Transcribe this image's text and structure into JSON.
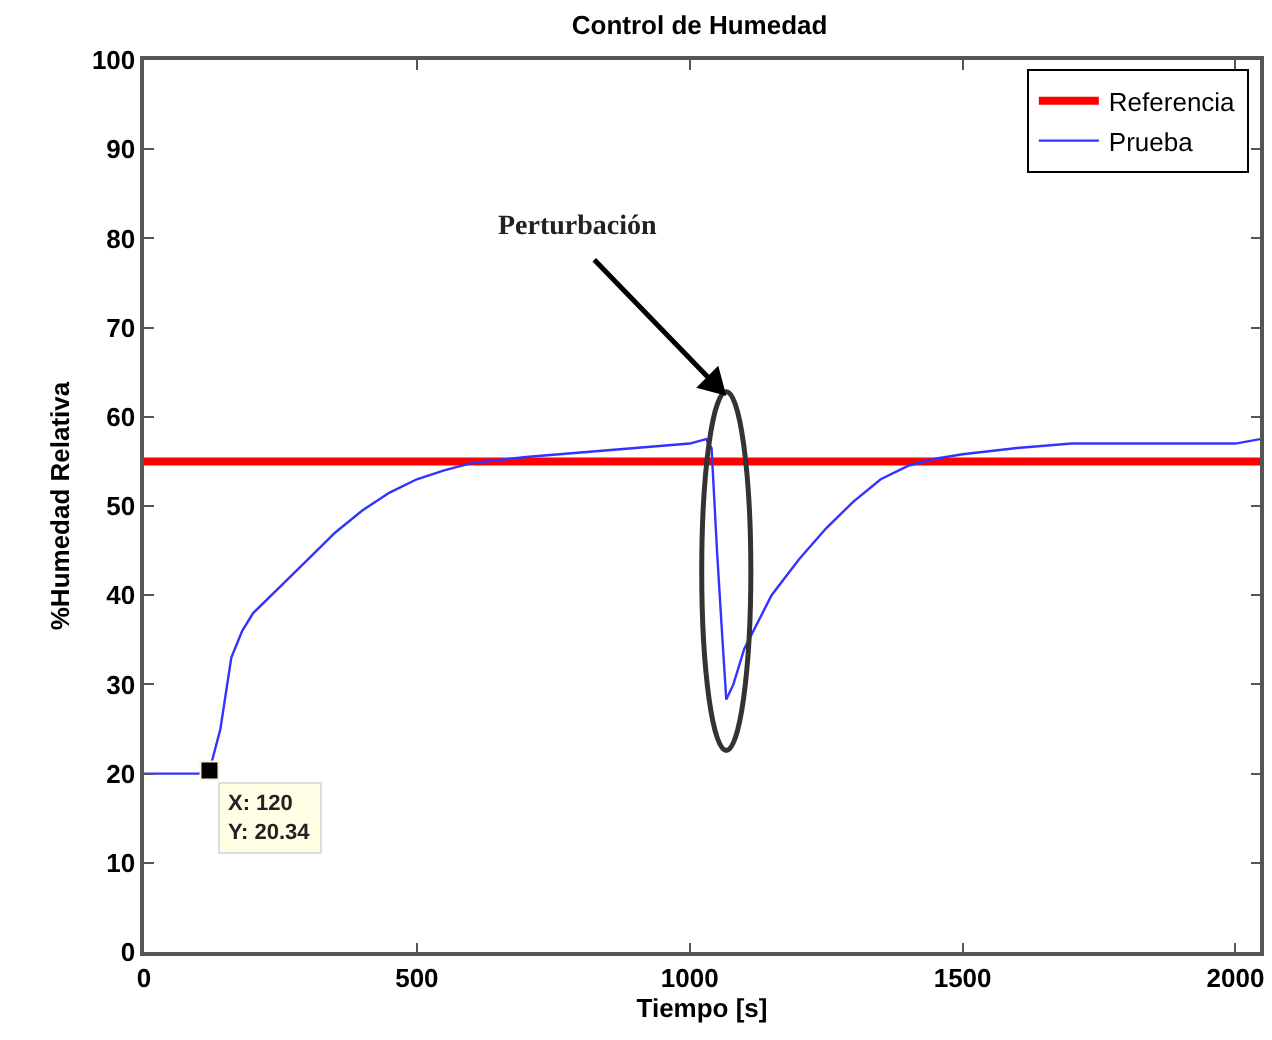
{
  "chart_data": {
    "type": "line",
    "title": "Control de Humedad",
    "xlabel": "Tiempo [s]",
    "ylabel": "%Humedad Relativa",
    "xlim": [
      0,
      2045
    ],
    "ylim": [
      0,
      100
    ],
    "xticks": [
      0,
      500,
      1000,
      1500,
      2000
    ],
    "yticks": [
      0,
      10,
      20,
      30,
      40,
      50,
      60,
      70,
      80,
      90,
      100
    ],
    "grid": false,
    "legend": "top right",
    "series": [
      {
        "name": "Referencia",
        "color": "#ff0000",
        "x": [
          0,
          2045
        ],
        "values": [
          55,
          55
        ]
      },
      {
        "name": "Prueba",
        "color": "#3333ff",
        "x": [
          0,
          50,
          100,
          120,
          140,
          160,
          180,
          200,
          250,
          300,
          350,
          400,
          450,
          500,
          550,
          600,
          700,
          800,
          900,
          1000,
          1030,
          1040,
          1050,
          1060,
          1067,
          1080,
          1100,
          1150,
          1200,
          1250,
          1300,
          1350,
          1400,
          1450,
          1500,
          1600,
          1700,
          1800,
          1900,
          2000,
          2045
        ],
        "values": [
          20,
          20,
          20,
          20.34,
          25,
          33,
          36,
          38,
          41,
          44,
          47,
          49.5,
          51.5,
          53,
          54,
          54.8,
          55.5,
          56,
          56.5,
          57,
          57.5,
          56.5,
          45,
          35,
          28.3,
          30,
          34,
          40,
          44,
          47.5,
          50.5,
          53,
          54.5,
          55.3,
          55.8,
          56.5,
          57,
          57,
          57,
          57,
          57.5
        ]
      },
      {
        "color": "#000000",
        "type": "scatter",
        "marker": "square",
        "x": [
          120
        ],
        "values": [
          20.34
        ]
      }
    ],
    "annotations": [
      "Perturbación",
      {
        "text": "X: 120\nY: 20.34",
        "x": 120,
        "y": 20.34
      }
    ]
  }
}
